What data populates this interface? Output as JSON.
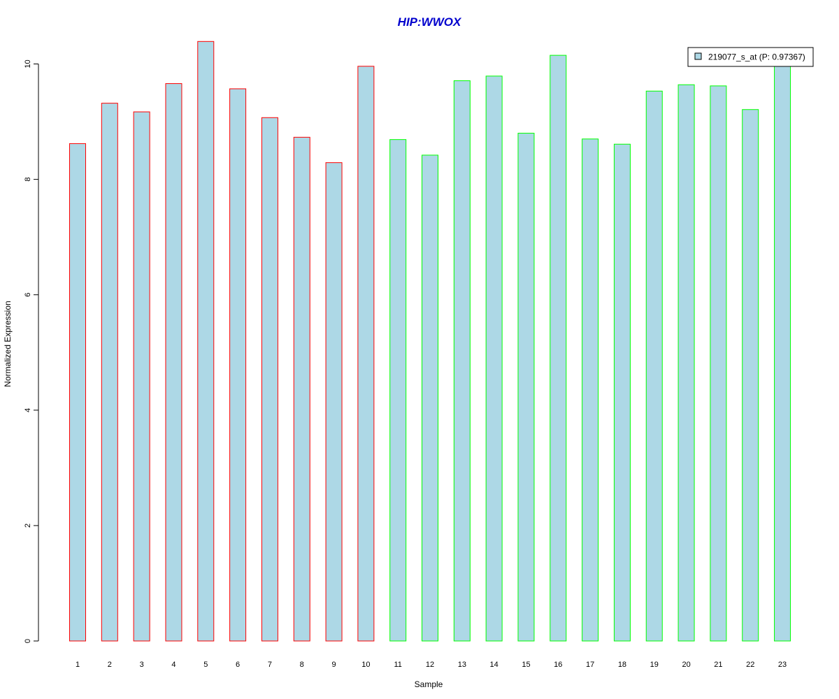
{
  "chart_data": {
    "type": "bar",
    "title": "HIP:WWOX",
    "xlabel": "Sample",
    "ylabel": "Normalized Expression",
    "categories": [
      "1",
      "2",
      "3",
      "4",
      "5",
      "6",
      "7",
      "8",
      "9",
      "10",
      "11",
      "12",
      "13",
      "14",
      "15",
      "16",
      "17",
      "18",
      "19",
      "20",
      "21",
      "22",
      "23"
    ],
    "series": [
      {
        "name": "219077_s_at (P: 0.97367)",
        "values": [
          8.62,
          9.32,
          9.17,
          9.66,
          10.39,
          9.57,
          9.07,
          8.73,
          8.29,
          9.96,
          8.69,
          8.42,
          9.71,
          9.79,
          8.8,
          10.15,
          8.7,
          8.61,
          9.53,
          9.64,
          9.62,
          9.21,
          9.98
        ]
      }
    ],
    "group_border_colors": [
      "#ff0000",
      "#ff0000",
      "#ff0000",
      "#ff0000",
      "#ff0000",
      "#ff0000",
      "#ff0000",
      "#ff0000",
      "#ff0000",
      "#ff0000",
      "#00ff00",
      "#00ff00",
      "#00ff00",
      "#00ff00",
      "#00ff00",
      "#00ff00",
      "#00ff00",
      "#00ff00",
      "#00ff00",
      "#00ff00",
      "#00ff00",
      "#00ff00",
      "#00ff00"
    ],
    "bar_fill": "#add8e6",
    "title_color": "#0000cd",
    "yticks": [
      0,
      2,
      4,
      6,
      8,
      10
    ],
    "ylim": [
      0,
      10.4
    ],
    "grid": false,
    "legend_position": "top-right"
  }
}
